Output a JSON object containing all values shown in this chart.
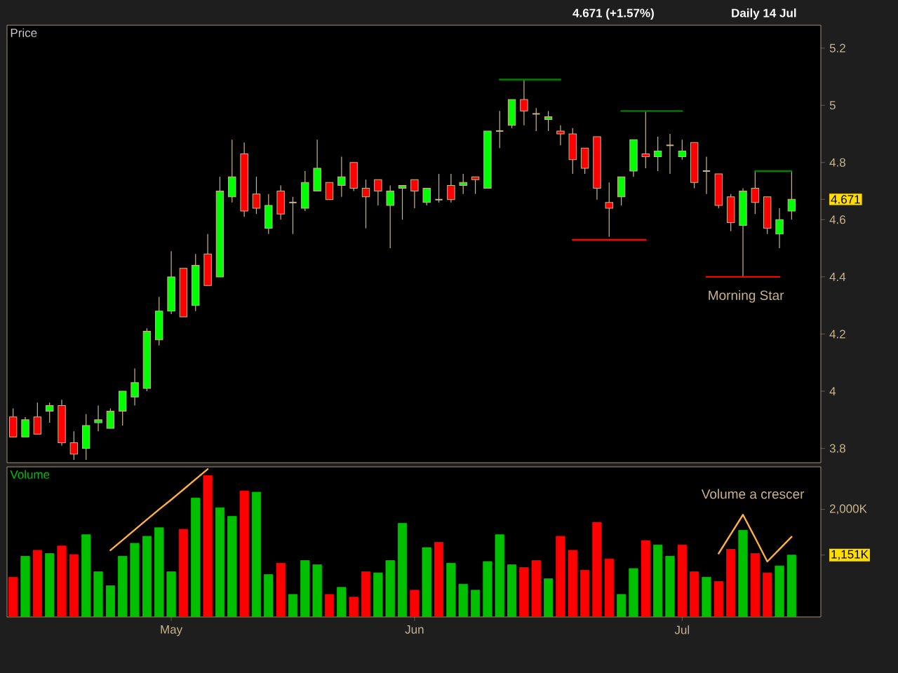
{
  "chart_data": [
    {
      "type": "candlestick",
      "title": "4.671 (+1.57%)",
      "subtitle": "Daily 14 Jul",
      "ylabel": "Price",
      "categories": [
        null,
        null,
        null,
        null,
        null,
        null,
        null,
        null,
        null,
        null,
        null,
        null,
        null,
        null,
        null,
        null,
        null,
        null,
        null,
        null,
        null,
        null,
        null,
        null,
        null,
        null,
        null,
        null,
        null,
        null,
        null,
        null,
        null,
        null,
        null,
        null,
        null,
        null,
        null,
        null,
        null,
        null,
        null,
        null,
        null,
        null,
        null,
        null,
        null,
        null,
        null,
        null,
        null,
        null,
        null,
        null,
        null,
        null,
        null,
        null,
        null,
        null,
        null,
        null,
        null
      ],
      "ohlc": [
        [
          3.91,
          3.94,
          3.84,
          3.84
        ],
        [
          3.84,
          3.91,
          3.84,
          3.9
        ],
        [
          3.91,
          3.96,
          3.85,
          3.85
        ],
        [
          3.93,
          3.96,
          3.89,
          3.95
        ],
        [
          3.95,
          3.97,
          3.81,
          3.82
        ],
        [
          3.82,
          3.86,
          3.76,
          3.78
        ],
        [
          3.8,
          3.92,
          3.76,
          3.88
        ],
        [
          3.89,
          3.95,
          3.86,
          3.9
        ],
        [
          3.87,
          3.94,
          3.87,
          3.93
        ],
        [
          3.93,
          4.0,
          3.88,
          4.0
        ],
        [
          3.98,
          4.08,
          3.95,
          4.03
        ],
        [
          4.01,
          4.22,
          4.0,
          4.21
        ],
        [
          4.18,
          4.33,
          4.16,
          4.28
        ],
        [
          4.28,
          4.49,
          4.27,
          4.4
        ],
        [
          4.43,
          4.43,
          4.26,
          4.26
        ],
        [
          4.3,
          4.48,
          4.28,
          4.44
        ],
        [
          4.48,
          4.55,
          4.37,
          4.37
        ],
        [
          4.4,
          4.75,
          4.4,
          4.7
        ],
        [
          4.68,
          4.88,
          4.66,
          4.75
        ],
        [
          4.83,
          4.87,
          4.61,
          4.63
        ],
        [
          4.69,
          4.75,
          4.62,
          4.64
        ],
        [
          4.57,
          4.69,
          4.55,
          4.65
        ],
        [
          4.7,
          4.72,
          4.6,
          4.62
        ],
        [
          4.66,
          4.68,
          4.55,
          4.66
        ],
        [
          4.64,
          4.77,
          4.63,
          4.73
        ],
        [
          4.7,
          4.88,
          4.7,
          4.78
        ],
        [
          4.73,
          4.73,
          4.67,
          4.67
        ],
        [
          4.72,
          4.82,
          4.68,
          4.75
        ],
        [
          4.8,
          4.8,
          4.7,
          4.71
        ],
        [
          4.71,
          4.74,
          4.57,
          4.68
        ],
        [
          4.74,
          4.74,
          4.65,
          4.7
        ],
        [
          4.65,
          4.72,
          4.5,
          4.7
        ],
        [
          4.71,
          4.72,
          4.6,
          4.72
        ],
        [
          4.74,
          4.74,
          4.64,
          4.7
        ],
        [
          4.66,
          4.71,
          4.65,
          4.71
        ],
        [
          4.67,
          4.76,
          4.66,
          4.67
        ],
        [
          4.72,
          4.76,
          4.66,
          4.67
        ],
        [
          4.72,
          4.76,
          4.69,
          4.73
        ],
        [
          4.75,
          4.75,
          4.69,
          4.74
        ],
        [
          4.71,
          4.91,
          4.71,
          4.91
        ],
        [
          4.91,
          4.98,
          4.85,
          4.91
        ],
        [
          4.93,
          5.02,
          4.92,
          5.02
        ],
        [
          5.02,
          5.09,
          4.93,
          4.98
        ],
        [
          4.97,
          4.99,
          4.91,
          4.97
        ],
        [
          4.95,
          4.98,
          4.91,
          4.96
        ],
        [
          4.91,
          4.93,
          4.86,
          4.9
        ],
        [
          4.9,
          4.92,
          4.76,
          4.81
        ],
        [
          4.85,
          4.85,
          4.76,
          4.78
        ],
        [
          4.89,
          4.89,
          4.67,
          4.71
        ],
        [
          4.66,
          4.73,
          4.54,
          4.64
        ],
        [
          4.68,
          4.75,
          4.65,
          4.75
        ],
        [
          4.77,
          4.88,
          4.75,
          4.88
        ],
        [
          4.83,
          4.98,
          4.78,
          4.82
        ],
        [
          4.82,
          4.89,
          4.77,
          4.84
        ],
        [
          4.86,
          4.9,
          4.76,
          4.86
        ],
        [
          4.82,
          4.88,
          4.81,
          4.84
        ],
        [
          4.87,
          4.87,
          4.71,
          4.73
        ],
        [
          4.77,
          4.82,
          4.69,
          4.77
        ],
        [
          4.76,
          4.76,
          4.64,
          4.65
        ],
        [
          4.68,
          4.69,
          4.56,
          4.59
        ],
        [
          4.58,
          4.71,
          4.4,
          4.7
        ],
        [
          4.71,
          4.77,
          4.62,
          4.66
        ],
        [
          4.68,
          4.68,
          4.55,
          4.57
        ],
        [
          4.55,
          4.64,
          4.5,
          4.6
        ],
        [
          4.63,
          4.77,
          4.6,
          4.671
        ]
      ],
      "colors": [
        "#ff0000",
        "#00ff00",
        "#ff0000",
        "#00ff00",
        "#ff0000",
        "#ff0000",
        "#00ff00",
        "#00ff00",
        "#00ff00",
        "#00ff00",
        "#00ff00",
        "#00ff00",
        "#00ff00",
        "#00ff00",
        "#ff0000",
        "#00ff00",
        "#ff0000",
        "#00ff00",
        "#00ff00",
        "#ff0000",
        "#ff0000",
        "#00ff00",
        "#ff0000",
        "#c8b48c",
        "#00ff00",
        "#00ff00",
        "#ff0000",
        "#00ff00",
        "#ff0000",
        "#ff0000",
        "#ff0000",
        "#00ff00",
        "#00ff00",
        "#ff0000",
        "#00ff00",
        "#c8b48c",
        "#ff0000",
        "#00ff00",
        "#ff0000",
        "#00ff00",
        "#c8b48c",
        "#00ff00",
        "#ff0000",
        "#c8b48c",
        "#00ff00",
        "#ff0000",
        "#ff0000",
        "#ff0000",
        "#ff0000",
        "#ff0000",
        "#00ff00",
        "#00ff00",
        "#ff0000",
        "#00ff00",
        "#c8b48c",
        "#00ff00",
        "#ff0000",
        "#c8b48c",
        "#ff0000",
        "#ff0000",
        "#00ff00",
        "#ff0000",
        "#ff0000",
        "#00ff00",
        "#00ff00"
      ],
      "series": [
        {
          "type": "line",
          "values": [
            null,
            null,
            null,
            null,
            null,
            null,
            null,
            null,
            null,
            null,
            null,
            null,
            null,
            null,
            null,
            null,
            null,
            null,
            null,
            null,
            null,
            null,
            null,
            null,
            null,
            null,
            null,
            null,
            null,
            null,
            null,
            null,
            null,
            null,
            null,
            null,
            null,
            null,
            null,
            null,
            5.09,
            5.09,
            5.09,
            5.09,
            5.09,
            5.09,
            null,
            null,
            null,
            null,
            null,
            null,
            null,
            null,
            null,
            null,
            null,
            null,
            null,
            null,
            null,
            null,
            null,
            null,
            null
          ],
          "color": "#008000"
        },
        {
          "type": "line",
          "values": [
            null,
            null,
            null,
            null,
            null,
            null,
            null,
            null,
            null,
            null,
            null,
            null,
            null,
            null,
            null,
            null,
            null,
            null,
            null,
            null,
            null,
            null,
            null,
            null,
            null,
            null,
            null,
            null,
            null,
            null,
            null,
            null,
            null,
            null,
            null,
            null,
            null,
            null,
            null,
            null,
            null,
            null,
            null,
            null,
            null,
            null,
            null,
            null,
            null,
            null,
            4.98,
            4.98,
            4.98,
            4.98,
            4.98,
            4.98,
            null,
            null,
            null,
            null,
            null,
            null,
            null,
            null,
            null
          ],
          "color": "#008000"
        },
        {
          "type": "line",
          "values": [
            null,
            null,
            null,
            null,
            null,
            null,
            null,
            null,
            null,
            null,
            null,
            null,
            null,
            null,
            null,
            null,
            null,
            null,
            null,
            null,
            null,
            null,
            null,
            null,
            null,
            null,
            null,
            null,
            null,
            null,
            null,
            null,
            null,
            null,
            null,
            null,
            null,
            null,
            null,
            null,
            null,
            null,
            null,
            null,
            null,
            null,
            4.53,
            4.53,
            4.53,
            4.53,
            4.53,
            4.53,
            4.53,
            null,
            null,
            null,
            null,
            null,
            null,
            null,
            null,
            null,
            null,
            null,
            null
          ],
          "color": "#ff0000"
        },
        {
          "type": "line",
          "values": [
            null,
            null,
            null,
            null,
            null,
            null,
            null,
            null,
            null,
            null,
            null,
            null,
            null,
            null,
            null,
            null,
            null,
            null,
            null,
            null,
            null,
            null,
            null,
            null,
            null,
            null,
            null,
            null,
            null,
            null,
            null,
            null,
            null,
            null,
            null,
            null,
            null,
            null,
            null,
            null,
            null,
            null,
            null,
            null,
            null,
            null,
            null,
            null,
            null,
            null,
            null,
            null,
            null,
            null,
            null,
            null,
            null,
            4.4,
            4.4,
            4.4,
            4.4,
            4.4,
            4.4,
            4.4,
            null
          ],
          "color": "#ff0000"
        },
        {
          "type": "line",
          "values": [
            null,
            null,
            null,
            null,
            null,
            null,
            null,
            null,
            null,
            null,
            null,
            null,
            null,
            null,
            null,
            null,
            null,
            null,
            null,
            null,
            null,
            null,
            null,
            null,
            null,
            null,
            null,
            null,
            null,
            null,
            null,
            null,
            null,
            null,
            null,
            null,
            null,
            null,
            null,
            null,
            null,
            null,
            null,
            null,
            null,
            null,
            null,
            null,
            null,
            null,
            null,
            null,
            null,
            null,
            null,
            null,
            null,
            null,
            null,
            null,
            null,
            4.77,
            4.77,
            4.77,
            4.77
          ],
          "color": "#008000"
        }
      ],
      "ylim": [
        3.75,
        5.28
      ],
      "yticks": [
        3.8,
        4,
        4.2,
        4.4,
        4.6,
        4.8,
        5,
        5.2,
        4.671
      ],
      "annotations": [
        "Morning Star"
      ]
    },
    {
      "type": "bar",
      "ylabel": "Volume",
      "categories": [
        null,
        null,
        null,
        null,
        null,
        null,
        null,
        null,
        null,
        null,
        null,
        null,
        null,
        "May",
        null,
        null,
        null,
        null,
        null,
        null,
        null,
        null,
        null,
        null,
        null,
        null,
        null,
        null,
        null,
        null,
        null,
        null,
        null,
        "Jun",
        null,
        null,
        null,
        null,
        null,
        null,
        null,
        null,
        null,
        null,
        null,
        null,
        null,
        null,
        null,
        null,
        null,
        null,
        null,
        null,
        null,
        "Jul",
        null,
        null,
        null,
        null,
        null,
        null,
        null,
        null,
        null
      ],
      "series": [
        {
          "type": "bar",
          "values": [
            740,
            1130,
            1240,
            1180,
            1320,
            1160,
            1530,
            840,
            580,
            1130,
            1370,
            1500,
            1660,
            840,
            1630,
            2210,
            2630,
            2030,
            1870,
            2340,
            2320,
            790,
            1000,
            420,
            1050,
            970,
            420,
            550,
            370,
            840,
            820,
            1050,
            1740,
            500,
            1290,
            1390,
            1000,
            610,
            500,
            1030,
            1530,
            970,
            920,
            1050,
            710,
            1500,
            1240,
            870,
            1760,
            1080,
            420,
            900,
            1420,
            1340,
            1130,
            1340,
            840,
            740,
            660,
            1260,
            1610,
            1180,
            820,
            950,
            1151
          ],
          "colors": [
            "#ff0000",
            "#00c000",
            "#ff0000",
            "#00c000",
            "#ff0000",
            "#ff0000",
            "#00c000",
            "#00c000",
            "#00c000",
            "#00c000",
            "#00c000",
            "#00c000",
            "#00c000",
            "#00c000",
            "#ff0000",
            "#00c000",
            "#ff0000",
            "#00c000",
            "#00c000",
            "#ff0000",
            "#00c000",
            "#00c000",
            "#ff0000",
            "#00c000",
            "#00c000",
            "#00c000",
            "#ff0000",
            "#00c000",
            "#ff0000",
            "#ff0000",
            "#00c000",
            "#00c000",
            "#00c000",
            "#ff0000",
            "#00c000",
            "#ff0000",
            "#00c000",
            "#00c000",
            "#00c000",
            "#00c000",
            "#00c000",
            "#00c000",
            "#ff0000",
            "#ff0000",
            "#00c000",
            "#ff0000",
            "#ff0000",
            "#ff0000",
            "#ff0000",
            "#ff0000",
            "#00c000",
            "#00c000",
            "#ff0000",
            "#00c000",
            "#00c000",
            "#ff0000",
            "#ff0000",
            "#00c000",
            "#ff0000",
            "#ff0000",
            "#00c000",
            "#ff0000",
            "#ff0000",
            "#00c000",
            "#00c000"
          ]
        },
        {
          "type": "line",
          "values": [
            null,
            null,
            null,
            null,
            null,
            null,
            null,
            null,
            1240,
            1430,
            1620,
            1810,
            2000,
            2180,
            2370,
            2560,
            2750,
            null,
            null,
            null,
            null,
            null,
            null,
            null,
            null,
            null,
            null,
            null,
            null,
            null,
            null,
            null,
            null,
            null,
            null,
            null,
            null,
            null,
            null,
            null,
            null,
            null,
            null,
            null,
            null,
            null,
            null,
            null,
            null,
            null,
            null,
            null,
            null,
            null,
            null,
            null,
            null,
            null,
            null,
            null,
            null,
            null,
            null,
            null,
            null
          ],
          "color": "#ffb040"
        },
        {
          "type": "line",
          "values": [
            null,
            null,
            null,
            null,
            null,
            null,
            null,
            null,
            null,
            null,
            null,
            null,
            null,
            null,
            null,
            null,
            null,
            null,
            null,
            null,
            null,
            null,
            null,
            null,
            null,
            null,
            null,
            null,
            null,
            null,
            null,
            null,
            null,
            null,
            null,
            null,
            null,
            null,
            null,
            null,
            null,
            null,
            null,
            null,
            null,
            null,
            null,
            null,
            null,
            null,
            null,
            null,
            null,
            null,
            null,
            null,
            null,
            null,
            1180,
            1540,
            1900,
            1470,
            1030,
            1260,
            1490
          ],
          "color": "#ffb040"
        }
      ],
      "ylim": [
        0,
        2790
      ],
      "yticks": [
        {
          "value": 2000,
          "label": "2,000K"
        },
        {
          "value": 1151,
          "label": "1,151K"
        }
      ],
      "annotations": [
        "Volume a crescer"
      ]
    }
  ]
}
